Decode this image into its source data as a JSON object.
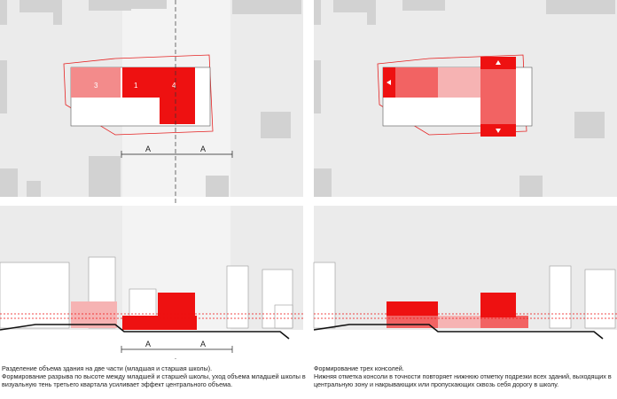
{
  "left_panel": {
    "volume_labels": [
      "3",
      "1",
      "4"
    ],
    "dimension_label": "A",
    "caption_lines": [
      "Разделение объема здания на две части (младшая и старшая школы).",
      "Формирование разрыва по высоте между младшей и старшей школы, уход объема младшей школы в",
      "визуальную тень третьего квартала усиливает эффект центрального объема."
    ]
  },
  "right_panel": {
    "caption_lines": [
      "Формирование трех консолей.",
      "Нижняя отметка консоли в точности повторяет нижнюю отметку подрезки всех зданий, выходящих в",
      "центральную зону и накрывающих или пропускающих сквозь себя дорогу в школу."
    ]
  },
  "colors": {
    "accent_red": "#ee1111",
    "mid_red": "#f26363",
    "light_red": "#f6a3a3",
    "ground_gray": "#ebebeb",
    "context_gray": "#cfcfcf"
  },
  "icons": [
    "arrow-up-icon",
    "arrow-down-icon",
    "arrow-left-icon"
  ]
}
